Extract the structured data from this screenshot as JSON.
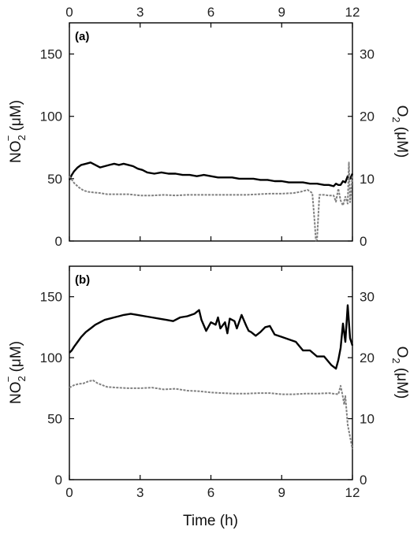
{
  "chart_data": [
    {
      "panel": "(a)",
      "type": "line",
      "x_top_ticks": [
        "0",
        "3",
        "6",
        "9",
        "12"
      ],
      "x_ticks": [
        0,
        3,
        6,
        9,
        12
      ],
      "show_bottom_tick_labels": false,
      "xlim": [
        0,
        12
      ],
      "ylim_left": [
        0,
        175
      ],
      "ylim_right": [
        0,
        35
      ],
      "yticks_left": [
        0,
        50,
        100,
        150
      ],
      "yticks_right": [
        0,
        10,
        20,
        30
      ],
      "ylabel_left": "NO2− (μM)",
      "ylabel_right": "O2 (μM)",
      "grid": false,
      "series": [
        {
          "axis": "left",
          "style": "solid",
          "color": "#000000",
          "x": [
            0,
            0.1,
            0.2,
            0.35,
            0.5,
            0.7,
            0.9,
            1.1,
            1.3,
            1.5,
            1.7,
            1.9,
            2.1,
            2.3,
            2.5,
            2.7,
            2.9,
            3.1,
            3.3,
            3.6,
            3.9,
            4.2,
            4.5,
            4.8,
            5.1,
            5.4,
            5.7,
            6.0,
            6.3,
            6.6,
            6.9,
            7.2,
            7.5,
            7.8,
            8.1,
            8.4,
            8.7,
            9.0,
            9.3,
            9.6,
            9.9,
            10.2,
            10.5,
            10.8,
            11.0,
            11.2,
            11.3,
            11.4,
            11.5,
            11.6,
            11.7,
            11.8,
            11.9,
            12.0
          ],
          "y": [
            49,
            53,
            56,
            59,
            61,
            62,
            63,
            61,
            59,
            60,
            61,
            62,
            61,
            62,
            61,
            60,
            58,
            57,
            55,
            54,
            55,
            54,
            54,
            53,
            53,
            52,
            53,
            52,
            51,
            51,
            51,
            50,
            50,
            50,
            49,
            49,
            48,
            48,
            47,
            47,
            47,
            46,
            46,
            45,
            45,
            44,
            46,
            45,
            45,
            48,
            47,
            52,
            50,
            54
          ]
        },
        {
          "axis": "right",
          "style": "dashed",
          "color": "#808080",
          "x": [
            0,
            0.2,
            0.4,
            0.6,
            0.8,
            1.0,
            1.3,
            1.6,
            2.0,
            2.5,
            3.0,
            3.5,
            4.0,
            4.5,
            5.0,
            5.5,
            6.0,
            6.5,
            7.0,
            7.5,
            8.0,
            8.5,
            9.0,
            9.5,
            9.8,
            10.1,
            10.3,
            10.4,
            10.45,
            10.5,
            10.6,
            10.8,
            11.0,
            11.2,
            11.3,
            11.4,
            11.5,
            11.6,
            11.7,
            11.8,
            11.85,
            11.9,
            12.0
          ],
          "y": [
            10.4,
            9.3,
            8.6,
            8.1,
            7.9,
            7.8,
            7.7,
            7.5,
            7.5,
            7.5,
            7.3,
            7.3,
            7.4,
            7.3,
            7.4,
            7.4,
            7.4,
            7.4,
            7.4,
            7.4,
            7.5,
            7.6,
            7.6,
            7.7,
            7.9,
            8.2,
            7.7,
            3.0,
            0.1,
            0.2,
            7.4,
            7.4,
            7.3,
            7.3,
            6.3,
            8.4,
            6.5,
            5.7,
            7.1,
            6.0,
            12.6,
            6.2,
            10.6
          ]
        }
      ]
    },
    {
      "panel": "(b)",
      "type": "line",
      "xlabel": "Time (h)",
      "x_ticks": [
        0,
        3,
        6,
        9,
        12
      ],
      "x_bottom_ticks": [
        "0",
        "3",
        "6",
        "9",
        "12"
      ],
      "show_bottom_tick_labels": true,
      "xlim": [
        0,
        12
      ],
      "ylim_left": [
        0,
        175
      ],
      "ylim_right": [
        0,
        35
      ],
      "yticks_left": [
        0,
        50,
        100,
        150
      ],
      "yticks_right": [
        0,
        10,
        20,
        30
      ],
      "ylabel_left": "NO2− (μM)",
      "ylabel_right": "O2 (μM)",
      "grid": false,
      "series": [
        {
          "axis": "left",
          "style": "solid",
          "color": "#000000",
          "x": [
            0,
            0.1,
            0.2,
            0.35,
            0.5,
            0.7,
            0.9,
            1.1,
            1.3,
            1.5,
            1.7,
            1.9,
            2.1,
            2.3,
            2.6,
            2.9,
            3.2,
            3.5,
            3.8,
            4.1,
            4.4,
            4.7,
            5.0,
            5.3,
            5.5,
            5.6,
            5.8,
            6.0,
            6.2,
            6.3,
            6.4,
            6.6,
            6.7,
            6.8,
            7.0,
            7.1,
            7.3,
            7.5,
            7.6,
            7.7,
            7.9,
            8.1,
            8.3,
            8.5,
            8.7,
            9.0,
            9.3,
            9.6,
            9.9,
            10.2,
            10.5,
            10.8,
            11.1,
            11.3,
            11.4,
            11.5,
            11.6,
            11.7,
            11.8,
            11.9,
            12.0
          ],
          "y": [
            104,
            106,
            109,
            113,
            117,
            121,
            124,
            127,
            129,
            131,
            132,
            133,
            134,
            135,
            136,
            135,
            134,
            133,
            132,
            131,
            130,
            133,
            134,
            136,
            139,
            131,
            122,
            129,
            127,
            133,
            124,
            129,
            120,
            132,
            130,
            124,
            135,
            126,
            122,
            121,
            118,
            121,
            125,
            126,
            119,
            117,
            115,
            113,
            106,
            106,
            101,
            101,
            94,
            91,
            98,
            108,
            128,
            113,
            143,
            116,
            110
          ]
        },
        {
          "axis": "right",
          "style": "dashed",
          "color": "#808080",
          "x": [
            0,
            0.2,
            0.4,
            0.6,
            0.8,
            1.0,
            1.2,
            1.4,
            1.6,
            2.0,
            2.5,
            3.0,
            3.5,
            4.0,
            4.5,
            5.0,
            5.5,
            6.0,
            6.5,
            7.0,
            7.5,
            8.0,
            8.5,
            9.0,
            9.5,
            10.0,
            10.5,
            11.0,
            11.4,
            11.5,
            11.6,
            11.65,
            11.7,
            11.8,
            11.9,
            12.0
          ],
          "y": [
            15.1,
            15.5,
            15.7,
            15.8,
            16.1,
            16.3,
            15.8,
            15.5,
            15.2,
            15.1,
            15.0,
            15.0,
            15.1,
            14.8,
            14.9,
            14.6,
            14.5,
            14.3,
            14.2,
            14.1,
            14.1,
            14.2,
            14.2,
            14.0,
            14.0,
            14.1,
            14.1,
            14.2,
            14.0,
            15.4,
            13.5,
            12.3,
            13.7,
            9.0,
            7.0,
            5.0
          ]
        }
      ]
    }
  ]
}
